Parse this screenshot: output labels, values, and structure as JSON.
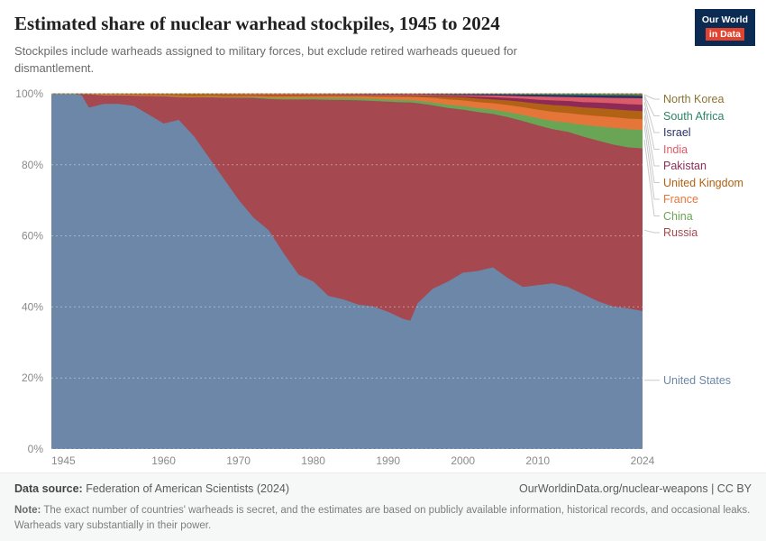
{
  "header": {
    "logo": {
      "line1": "Our World",
      "line2": "in Data"
    }
  },
  "brand": {
    "navy": "#0c2b52",
    "red": "#e0432f"
  },
  "chart_data": {
    "type": "area",
    "stacked": true,
    "normalized_percent": true,
    "title": "Estimated share of nuclear warhead stockpiles, 1945 to 2024",
    "subtitle": "Stockpiles include warheads assigned to military forces, but exclude retired warheads queued for dismantlement.",
    "x_range": [
      1945,
      2024
    ],
    "x_ticks": [
      1945,
      1960,
      1970,
      1980,
      1990,
      2000,
      2010,
      2024
    ],
    "y_ticks": [
      "0%",
      "20%",
      "40%",
      "60%",
      "80%",
      "100%"
    ],
    "ylim": [
      0,
      100
    ],
    "legend_position": "right",
    "x": [
      1945,
      1947,
      1949,
      1950,
      1952,
      1954,
      1956,
      1958,
      1960,
      1962,
      1964,
      1966,
      1968,
      1970,
      1972,
      1974,
      1976,
      1978,
      1980,
      1982,
      1984,
      1986,
      1988,
      1990,
      1991,
      1992,
      1993,
      1994,
      1996,
      1998,
      2000,
      2002,
      2004,
      2006,
      2008,
      2010,
      2012,
      2014,
      2016,
      2018,
      2020,
      2022,
      2024
    ],
    "series": [
      {
        "name": "United States",
        "color": "#6d87a8",
        "values": [
          100,
          100,
          99.5,
          96,
          97,
          97,
          96.5,
          94,
          91.5,
          92.5,
          88,
          82,
          76,
          70,
          65,
          61.5,
          55,
          49,
          47,
          43,
          42,
          40.5,
          40,
          38.5,
          37.5,
          36.5,
          36,
          41,
          45,
          47,
          49.5,
          50,
          51,
          48,
          45.5,
          46,
          46.5,
          45.5,
          43.5,
          41.5,
          40,
          39.5,
          38.7
        ]
      },
      {
        "name": "Russia",
        "color": "#a5484f",
        "values": [
          0,
          0,
          0.5,
          4,
          2.7,
          2.7,
          3.1,
          5.5,
          7.95,
          6.7,
          11.05,
          17.05,
          22.9,
          28.8,
          33.7,
          36.9,
          43.25,
          49.25,
          51.3,
          55.2,
          56.1,
          57.55,
          57.85,
          59.15,
          60.05,
          60.95,
          61.45,
          56.2,
          51.6,
          48.9,
          45.9,
          44.75,
          43.2,
          45.3,
          46.7,
          45,
          43.4,
          43.65,
          44.35,
          45.2,
          45.6,
          45.3,
          45.8
        ]
      },
      {
        "name": "China",
        "color": "#6aa556",
        "values": [
          0,
          0,
          0,
          0,
          0,
          0,
          0,
          0,
          0,
          0,
          0.05,
          0.1,
          0.1,
          0.2,
          0.3,
          0.35,
          0.4,
          0.4,
          0.45,
          0.5,
          0.55,
          0.55,
          0.6,
          0.6,
          0.65,
          0.65,
          0.65,
          0.7,
          0.8,
          0.9,
          1,
          1.1,
          1.2,
          1.4,
          1.7,
          2,
          2.3,
          2.6,
          3.3,
          4,
          4.7,
          5.1,
          5.2
        ]
      },
      {
        "name": "France",
        "color": "#e6753a",
        "values": [
          0,
          0,
          0,
          0,
          0,
          0,
          0,
          0,
          0.05,
          0.1,
          0.1,
          0.15,
          0.2,
          0.2,
          0.25,
          0.35,
          0.45,
          0.45,
          0.45,
          0.5,
          0.5,
          0.55,
          0.65,
          0.8,
          0.85,
          0.9,
          0.9,
          1,
          1.3,
          1.5,
          1.6,
          1.7,
          1.8,
          2,
          2.2,
          2.4,
          2.6,
          2.7,
          2.8,
          2.9,
          3,
          3,
          3
        ]
      },
      {
        "name": "United Kingdom",
        "color": "#b16214",
        "values": [
          0,
          0,
          0,
          0,
          0.3,
          0.3,
          0.4,
          0.5,
          0.5,
          0.7,
          0.8,
          0.7,
          0.7,
          0.7,
          0.6,
          0.7,
          0.7,
          0.7,
          0.6,
          0.6,
          0.5,
          0.5,
          0.5,
          0.5,
          0.5,
          0.5,
          0.55,
          0.6,
          0.7,
          0.8,
          0.9,
          1,
          1.1,
          1.3,
          1.5,
          1.7,
          1.9,
          2,
          2.1,
          2.2,
          2.2,
          2.3,
          2.3
        ]
      },
      {
        "name": "Pakistan",
        "color": "#8d2b56",
        "values": [
          0,
          0,
          0,
          0,
          0,
          0,
          0,
          0,
          0,
          0,
          0,
          0,
          0,
          0,
          0,
          0,
          0,
          0,
          0,
          0,
          0,
          0,
          0,
          0,
          0,
          0,
          0,
          0,
          0,
          0.2,
          0.3,
          0.5,
          0.6,
          0.7,
          0.9,
          1.1,
          1.3,
          1.4,
          1.5,
          1.6,
          1.7,
          1.75,
          1.8
        ]
      },
      {
        "name": "India",
        "color": "#dc5b68",
        "values": [
          0,
          0,
          0,
          0,
          0,
          0,
          0,
          0,
          0,
          0,
          0,
          0,
          0,
          0,
          0,
          0.05,
          0.05,
          0.05,
          0.05,
          0.05,
          0.1,
          0.1,
          0.1,
          0.1,
          0.1,
          0.15,
          0.15,
          0.15,
          0.2,
          0.25,
          0.3,
          0.4,
          0.5,
          0.6,
          0.7,
          0.9,
          1,
          1.1,
          1.3,
          1.4,
          1.5,
          1.7,
          1.8
        ]
      },
      {
        "name": "Israel",
        "color": "#2b3167",
        "values": [
          0,
          0,
          0,
          0,
          0,
          0,
          0,
          0,
          0,
          0,
          0,
          0,
          0.1,
          0.1,
          0.15,
          0.15,
          0.15,
          0.15,
          0.15,
          0.15,
          0.2,
          0.2,
          0.25,
          0.3,
          0.3,
          0.3,
          0.3,
          0.35,
          0.4,
          0.45,
          0.5,
          0.55,
          0.6,
          0.65,
          0.7,
          0.75,
          0.8,
          0.8,
          0.85,
          0.85,
          0.9,
          0.9,
          0.9
        ]
      },
      {
        "name": "South Africa",
        "color": "#2c8465",
        "values": [
          0,
          0,
          0,
          0,
          0,
          0,
          0,
          0,
          0,
          0,
          0,
          0,
          0,
          0,
          0,
          0,
          0,
          0,
          0,
          0.02,
          0.03,
          0.05,
          0.06,
          0.06,
          0.05,
          0.03,
          0.01,
          0,
          0,
          0,
          0,
          0,
          0,
          0,
          0,
          0,
          0,
          0,
          0,
          0,
          0,
          0,
          0
        ]
      },
      {
        "name": "North Korea",
        "color": "#8a7432",
        "values": [
          0,
          0,
          0,
          0,
          0,
          0,
          0,
          0,
          0,
          0,
          0,
          0,
          0,
          0,
          0,
          0,
          0,
          0,
          0,
          0,
          0,
          0,
          0,
          0,
          0,
          0,
          0,
          0,
          0,
          0,
          0,
          0,
          0,
          0.05,
          0.1,
          0.15,
          0.2,
          0.25,
          0.3,
          0.35,
          0.4,
          0.45,
          0.5
        ]
      }
    ]
  },
  "footer": {
    "datasource_label": "Data source:",
    "datasource": "Federation of American Scientists (2024)",
    "link": "OurWorldinData.org/nuclear-weapons | CC BY",
    "note_label": "Note:",
    "note": "The exact number of countries' warheads is secret, and the estimates are based on publicly available information, historical records, and occasional leaks. Warheads vary substantially in their power."
  }
}
